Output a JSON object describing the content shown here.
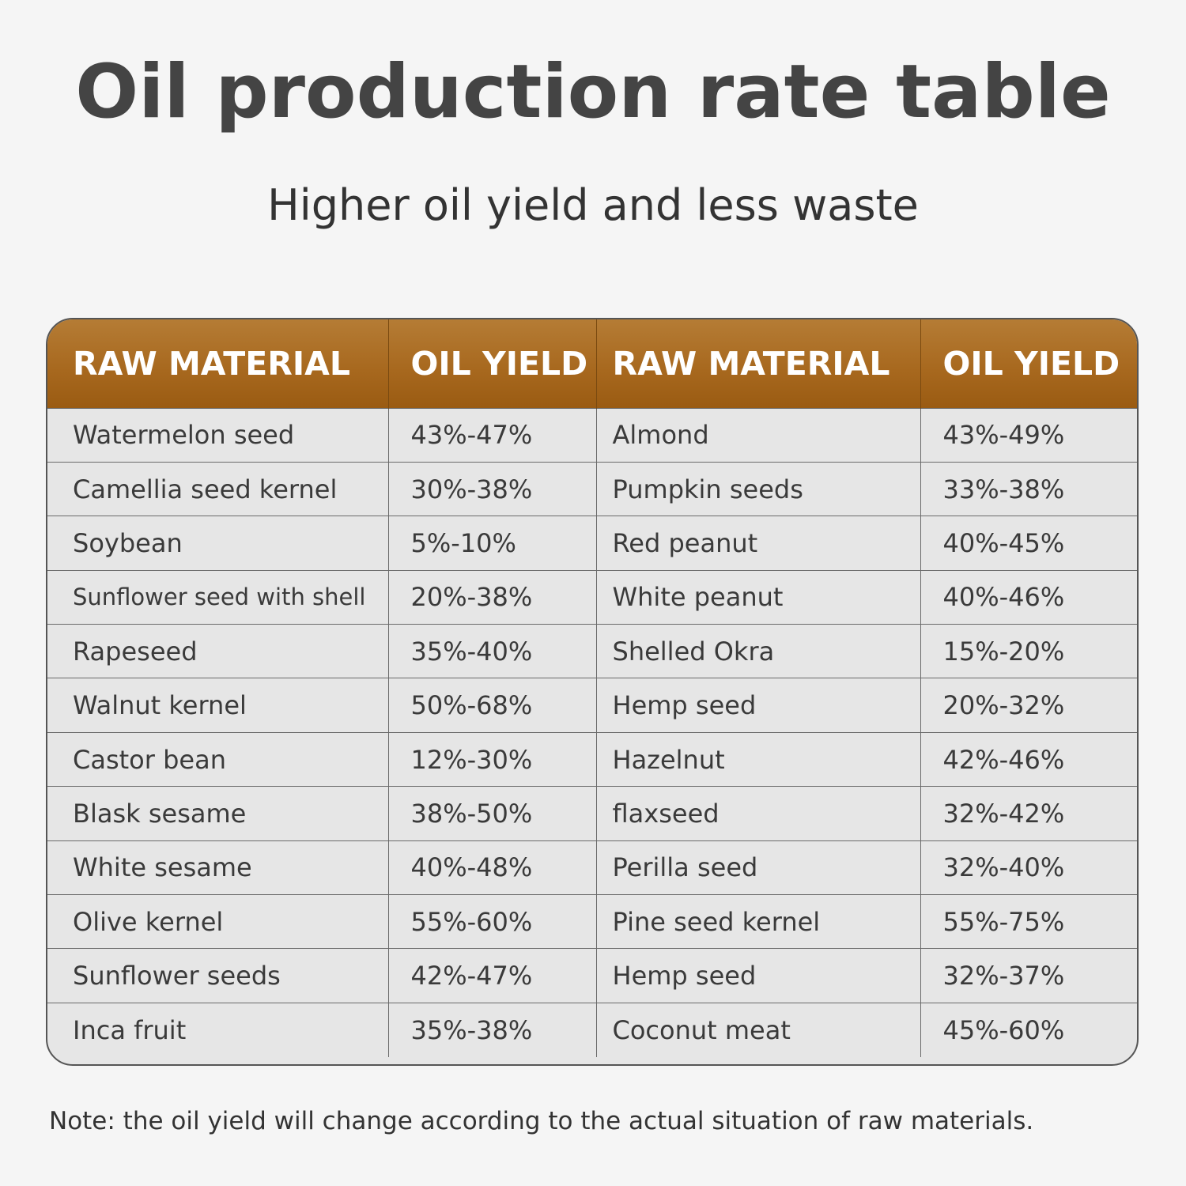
{
  "title": "Oil production rate table",
  "subtitle": "Higher oil yield and less waste",
  "table": {
    "headers": [
      "RAW MATERIAL",
      "OIL YIELD",
      "RAW MATERIAL",
      "OIL YIELD"
    ],
    "header_color": "#a8691f",
    "rows": [
      [
        "Watermelon seed",
        "43%-47%",
        "Almond",
        "43%-49%"
      ],
      [
        "Camellia seed kernel",
        "30%-38%",
        "Pumpkin seeds",
        "33%-38%"
      ],
      [
        "Soybean",
        "5%-10%",
        "Red peanut",
        "40%-45%"
      ],
      [
        "Sunflower seed with shell",
        "20%-38%",
        "White peanut",
        "40%-46%"
      ],
      [
        "Rapeseed",
        "35%-40%",
        "Shelled Okra",
        "15%-20%"
      ],
      [
        "Walnut kernel",
        "50%-68%",
        "Hemp seed",
        "20%-32%"
      ],
      [
        "Castor bean",
        "12%-30%",
        "Hazelnut",
        "42%-46%"
      ],
      [
        "Blask sesame",
        "38%-50%",
        "flaxseed",
        "32%-42%"
      ],
      [
        "White sesame",
        "40%-48%",
        "Perilla seed",
        "32%-40%"
      ],
      [
        "Olive kernel",
        "55%-60%",
        "Pine seed kernel",
        "55%-75%"
      ],
      [
        "Sunflower seeds",
        "42%-47%",
        "Hemp seed",
        "32%-37%"
      ],
      [
        "Inca fruit",
        "35%-38%",
        "Coconut meat",
        "45%-60%"
      ]
    ]
  },
  "note": "Note: the oil yield will change according to the actual situation of raw materials."
}
